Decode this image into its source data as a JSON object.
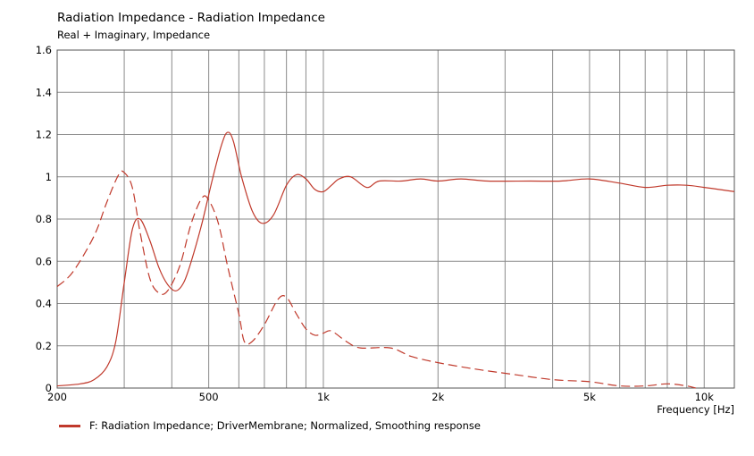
{
  "chart_data": {
    "type": "line",
    "title": "Radiation Impedance - Radiation Impedance",
    "subtitle": "Real + Imaginary, Impedance",
    "xlabel": "Frequency  [Hz]",
    "ylabel": "",
    "xscale": "log",
    "xlim": [
      200,
      12000
    ],
    "ylim": [
      0,
      1.6
    ],
    "grid": true,
    "x_tick_labels": [
      {
        "x": 200,
        "label": "200"
      },
      {
        "x": 500,
        "label": "500"
      },
      {
        "x": 1000,
        "label": "1k"
      },
      {
        "x": 2000,
        "label": "2k"
      },
      {
        "x": 5000,
        "label": "5k"
      },
      {
        "x": 10000,
        "label": "10k"
      }
    ],
    "y_ticks": [
      0,
      0.2,
      0.4,
      0.6,
      0.8,
      1,
      1.2,
      1.4,
      1.6
    ],
    "y_tick_labels": [
      "0",
      "0.2",
      "0.4",
      "0.6",
      "0.8",
      "1",
      "1.2",
      "1.4",
      "1.6"
    ],
    "legend": "F: Radiation Impedance;  DriverMembrane; Normalized, Smoothing response",
    "legend_position": "bottom-left",
    "color": "#c0392b",
    "series": [
      {
        "style": "solid",
        "points": [
          [
            200,
            0.01
          ],
          [
            230,
            0.02
          ],
          [
            250,
            0.04
          ],
          [
            270,
            0.1
          ],
          [
            285,
            0.22
          ],
          [
            300,
            0.5
          ],
          [
            315,
            0.75
          ],
          [
            330,
            0.8
          ],
          [
            350,
            0.7
          ],
          [
            370,
            0.57
          ],
          [
            390,
            0.49
          ],
          [
            410,
            0.46
          ],
          [
            430,
            0.5
          ],
          [
            450,
            0.6
          ],
          [
            480,
            0.78
          ],
          [
            510,
            0.98
          ],
          [
            540,
            1.15
          ],
          [
            560,
            1.21
          ],
          [
            580,
            1.17
          ],
          [
            610,
            1.0
          ],
          [
            650,
            0.84
          ],
          [
            690,
            0.78
          ],
          [
            740,
            0.82
          ],
          [
            800,
            0.96
          ],
          [
            850,
            1.01
          ],
          [
            900,
            0.99
          ],
          [
            950,
            0.94
          ],
          [
            1000,
            0.93
          ],
          [
            1050,
            0.96
          ],
          [
            1100,
            0.99
          ],
          [
            1180,
            1.0
          ],
          [
            1300,
            0.95
          ],
          [
            1400,
            0.98
          ],
          [
            1600,
            0.98
          ],
          [
            1800,
            0.99
          ],
          [
            2000,
            0.98
          ],
          [
            2300,
            0.99
          ],
          [
            2700,
            0.98
          ],
          [
            3500,
            0.98
          ],
          [
            4200,
            0.98
          ],
          [
            5000,
            0.99
          ],
          [
            6000,
            0.97
          ],
          [
            7000,
            0.95
          ],
          [
            8000,
            0.96
          ],
          [
            9000,
            0.96
          ],
          [
            10000,
            0.95
          ],
          [
            12000,
            0.93
          ]
        ]
      },
      {
        "style": "dashed",
        "points": [
          [
            200,
            0.48
          ],
          [
            220,
            0.55
          ],
          [
            250,
            0.72
          ],
          [
            270,
            0.88
          ],
          [
            290,
            1.01
          ],
          [
            300,
            1.02
          ],
          [
            315,
            0.95
          ],
          [
            330,
            0.74
          ],
          [
            350,
            0.52
          ],
          [
            370,
            0.45
          ],
          [
            390,
            0.46
          ],
          [
            420,
            0.58
          ],
          [
            450,
            0.78
          ],
          [
            480,
            0.9
          ],
          [
            500,
            0.89
          ],
          [
            530,
            0.78
          ],
          [
            560,
            0.58
          ],
          [
            600,
            0.35
          ],
          [
            620,
            0.22
          ],
          [
            650,
            0.22
          ],
          [
            700,
            0.3
          ],
          [
            760,
            0.42
          ],
          [
            800,
            0.43
          ],
          [
            850,
            0.35
          ],
          [
            900,
            0.28
          ],
          [
            950,
            0.25
          ],
          [
            1000,
            0.26
          ],
          [
            1050,
            0.27
          ],
          [
            1150,
            0.22
          ],
          [
            1250,
            0.19
          ],
          [
            1500,
            0.19
          ],
          [
            1700,
            0.15
          ],
          [
            2000,
            0.12
          ],
          [
            2500,
            0.09
          ],
          [
            3000,
            0.07
          ],
          [
            4000,
            0.04
          ],
          [
            5000,
            0.03
          ],
          [
            6000,
            0.01
          ],
          [
            7000,
            0.01
          ],
          [
            8000,
            0.02
          ],
          [
            9000,
            0.01
          ],
          [
            9500,
            0.0
          ]
        ]
      }
    ]
  }
}
